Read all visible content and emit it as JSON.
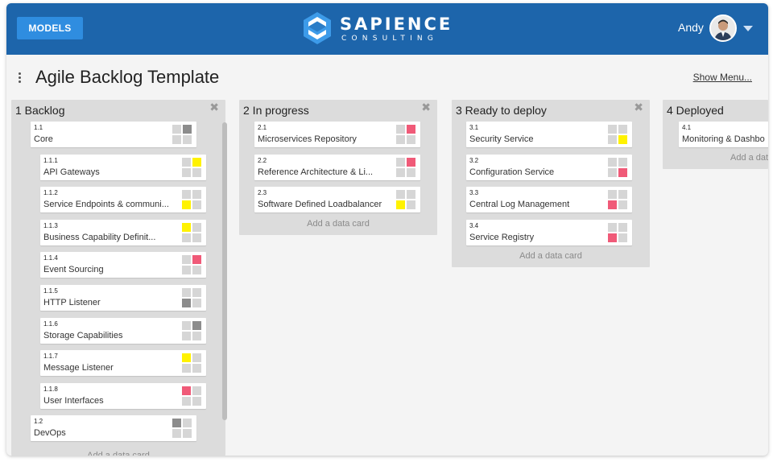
{
  "header": {
    "models_label": "MODELS",
    "brand": "SAPIENCE",
    "brand_sub": "CONSULTING",
    "user": "Andy"
  },
  "page": {
    "title": "Agile Backlog Template",
    "show_menu": "Show Menu..."
  },
  "add_card_label": "Add a data card",
  "colors": {
    "gray": "#d6d6d6",
    "dark": "#8c8c8c",
    "yellow": "#fff200",
    "red": "#f05a78"
  },
  "columns": [
    {
      "title": "1 Backlog",
      "cards": [
        {
          "num": "1.1",
          "name": "Core",
          "squares": [
            "gray",
            "dark",
            "gray",
            "gray"
          ]
        },
        {
          "num": "1.1.1",
          "name": "API Gateways",
          "squares": [
            "gray",
            "yellow",
            "gray",
            "gray"
          ]
        },
        {
          "num": "1.1.2",
          "name": "Service Endpoints & communi...",
          "squares": [
            "gray",
            "gray",
            "yellow",
            "gray"
          ]
        },
        {
          "num": "1.1.3",
          "name": "Business Capability Definit...",
          "squares": [
            "yellow",
            "gray",
            "gray",
            "gray"
          ]
        },
        {
          "num": "1.1.4",
          "name": "Event Sourcing",
          "squares": [
            "gray",
            "red",
            "gray",
            "gray"
          ]
        },
        {
          "num": "1.1.5",
          "name": "HTTP Listener",
          "squares": [
            "gray",
            "gray",
            "dark",
            "gray"
          ]
        },
        {
          "num": "1.1.6",
          "name": "Storage Capabilities",
          "squares": [
            "gray",
            "dark",
            "gray",
            "gray"
          ]
        },
        {
          "num": "1.1.7",
          "name": "Message Listener",
          "squares": [
            "yellow",
            "gray",
            "gray",
            "gray"
          ]
        },
        {
          "num": "1.1.8",
          "name": "User Interfaces",
          "squares": [
            "red",
            "gray",
            "gray",
            "gray"
          ]
        },
        {
          "num": "1.2",
          "name": "DevOps",
          "squares": [
            "dark",
            "gray",
            "gray",
            "gray"
          ]
        }
      ]
    },
    {
      "title": "2 In progress",
      "cards": [
        {
          "num": "2.1",
          "name": "Microservices Repository",
          "squares": [
            "gray",
            "red",
            "gray",
            "gray"
          ]
        },
        {
          "num": "2.2",
          "name": "Reference Architecture & Li...",
          "squares": [
            "gray",
            "red",
            "gray",
            "gray"
          ]
        },
        {
          "num": "2.3",
          "name": "Software Defined Loadbalancer",
          "squares": [
            "gray",
            "gray",
            "yellow",
            "gray"
          ]
        }
      ]
    },
    {
      "title": "3 Ready to deploy",
      "cards": [
        {
          "num": "3.1",
          "name": "Security Service",
          "squares": [
            "gray",
            "gray",
            "gray",
            "yellow"
          ]
        },
        {
          "num": "3.2",
          "name": "Configuration Service",
          "squares": [
            "gray",
            "gray",
            "gray",
            "red"
          ]
        },
        {
          "num": "3.3",
          "name": "Central Log Management",
          "squares": [
            "gray",
            "gray",
            "red",
            "gray"
          ]
        },
        {
          "num": "3.4",
          "name": "Service Registry",
          "squares": [
            "gray",
            "gray",
            "red",
            "gray"
          ]
        }
      ]
    },
    {
      "title": "4 Deployed",
      "cards": [
        {
          "num": "4.1",
          "name": "Monitoring & Dashbo",
          "squares": []
        }
      ]
    }
  ]
}
